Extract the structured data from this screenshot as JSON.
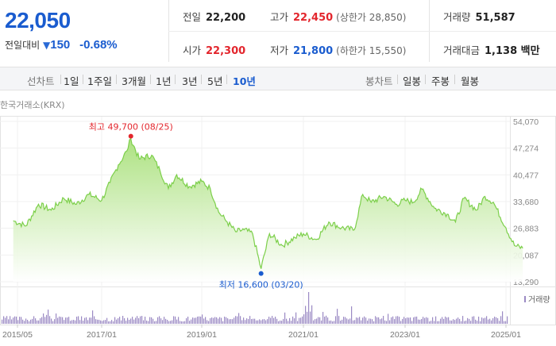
{
  "quote": {
    "price": "22,050",
    "change_label": "전일대비",
    "change_arrow": "▼",
    "change_value": "150",
    "change_rate": "-0.68%"
  },
  "stats": {
    "prev_close": {
      "label": "전일",
      "value": "22,200"
    },
    "open": {
      "label": "시가",
      "value": "22,300"
    },
    "high": {
      "label": "고가",
      "value": "22,450",
      "extra": "(상한가 28,850)"
    },
    "low": {
      "label": "저가",
      "value": "21,800",
      "extra": "(하한가 15,550)"
    },
    "volume": {
      "label": "거래량",
      "value": "51,587"
    },
    "amount": {
      "label": "거래대금",
      "value": "1,138 백만"
    }
  },
  "toolbar": {
    "line_label": "선차트",
    "periods": [
      "1일",
      "1주일",
      "3개월",
      "1년",
      "3년",
      "5년",
      "10년"
    ],
    "active_period": "10년",
    "candle_label": "봉차트",
    "candle_periods": [
      "일봉",
      "주봉",
      "월봉"
    ]
  },
  "source": "한국거래소(KRX)",
  "colors": {
    "up": "#e3262d",
    "down": "#1a5ccf",
    "line": "#7ccf4a",
    "fill_top": "#a8e07a",
    "volume": "#9b8ac4"
  },
  "chart_data": {
    "type": "area",
    "x_ticks": [
      "2015/05",
      "2017/01",
      "2019/01",
      "2021/01",
      "2023/01",
      "2025/01"
    ],
    "y_ticks": [
      54070,
      47274,
      40477,
      33680,
      26883,
      20087,
      13290
    ],
    "ylim": [
      13290,
      54070
    ],
    "annotations": {
      "high": {
        "label": "최고 49,700 (08/25)",
        "value": 49700,
        "date": "2017/08"
      },
      "low": {
        "label": "최저 16,600 (03/20)",
        "value": 16600,
        "date": "2020/03"
      }
    },
    "volume_label": "거래량",
    "series": [
      {
        "x": [
          "2015/04",
          "2015/07",
          "2015/10",
          "2016/01",
          "2016/04",
          "2016/07",
          "2016/10",
          "2017/01",
          "2017/03",
          "2017/05",
          "2017/07",
          "2017/08",
          "2017/10",
          "2018/01",
          "2018/03",
          "2018/05",
          "2018/07",
          "2018/10",
          "2019/01",
          "2019/03",
          "2019/05",
          "2019/07",
          "2019/09",
          "2019/11",
          "2020/01",
          "2020/03",
          "2020/05",
          "2020/08",
          "2020/11",
          "2021/01",
          "2021/04",
          "2021/07",
          "2021/10",
          "2022/01",
          "2022/03",
          "2022/05",
          "2022/08",
          "2022/11",
          "2023/01",
          "2023/03",
          "2023/05",
          "2023/08",
          "2023/11",
          "2024/01",
          "2024/03",
          "2024/06",
          "2024/08",
          "2024/10",
          "2025/01",
          "2025/03",
          "2025/05"
        ],
        "values": [
          28800,
          27500,
          33000,
          31500,
          34500,
          33000,
          35500,
          34000,
          38500,
          43000,
          46500,
          49700,
          44500,
          45500,
          41500,
          37000,
          40500,
          37500,
          38800,
          37000,
          31000,
          28500,
          26000,
          26500,
          25500,
          16600,
          25500,
          22500,
          24500,
          25500,
          24000,
          28500,
          27000,
          26500,
          35500,
          33500,
          35000,
          33000,
          34000,
          33500,
          36800,
          32000,
          30500,
          28500,
          34500,
          31500,
          35000,
          33500,
          27000,
          22500,
          21800
        ]
      }
    ]
  }
}
